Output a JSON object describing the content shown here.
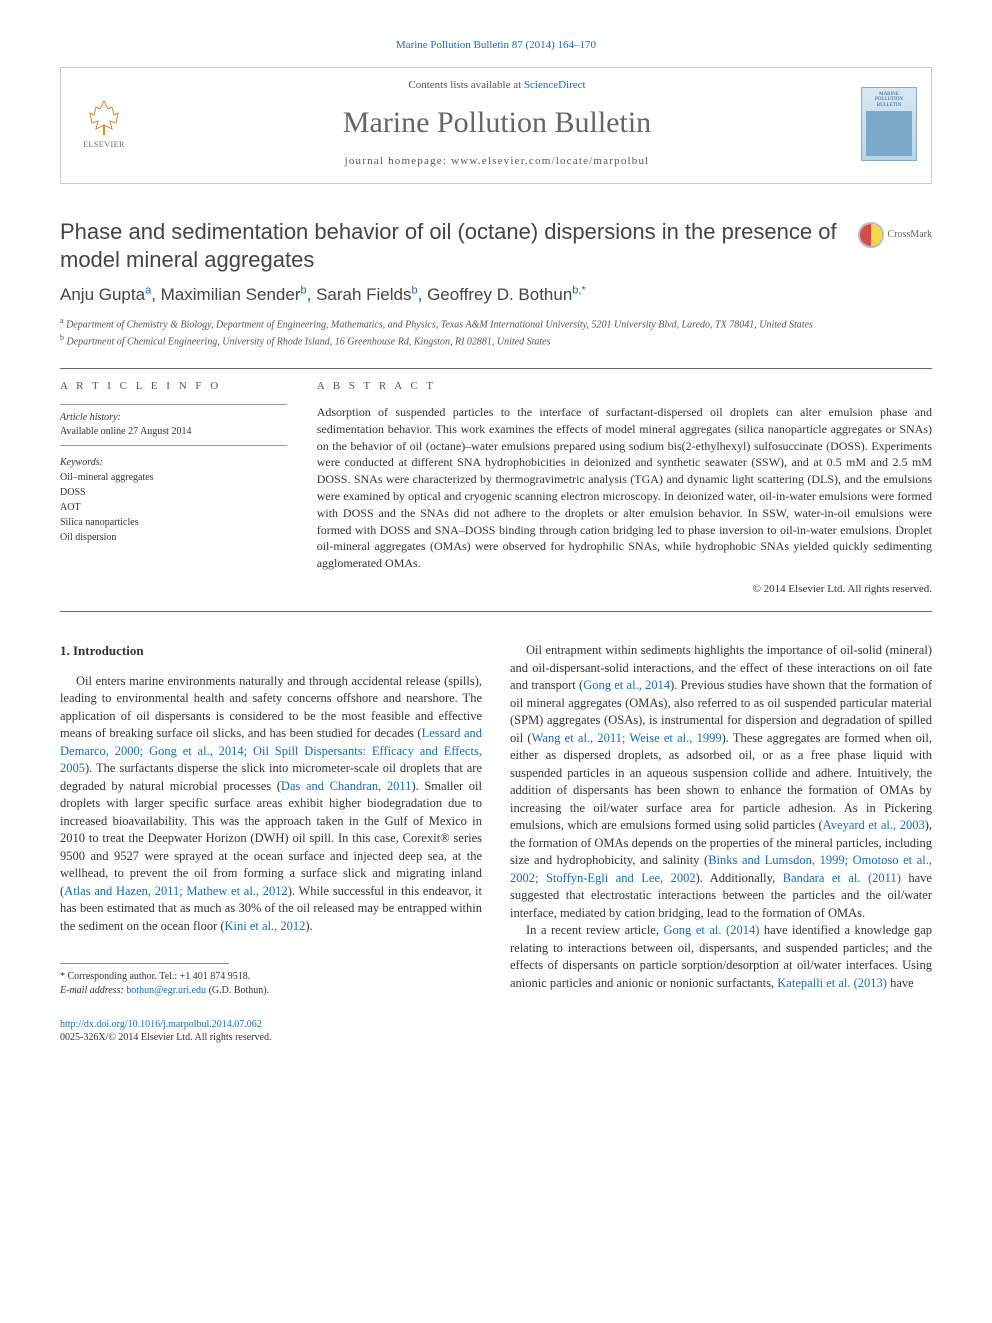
{
  "citation": "Marine Pollution Bulletin 87 (2014) 164–170",
  "header": {
    "contents_prefix": "Contents lists available at ",
    "contents_link": "ScienceDirect",
    "journal_name": "Marine Pollution Bulletin",
    "homepage_prefix": "journal homepage: ",
    "homepage_url": "www.elsevier.com/locate/marpolbul",
    "elsevier_label": "ELSEVIER",
    "cover_title": "MARINE POLLUTION BULLETIN"
  },
  "article": {
    "title": "Phase and sedimentation behavior of oil (octane) dispersions in the presence of model mineral aggregates",
    "crossmark": "CrossMark",
    "authors_html": "Anju Gupta<sup>a</sup>, Maximilian Sender<sup>b</sup>, Sarah Fields<sup>b</sup>, Geoffrey D. Bothun<sup>b,*</sup>",
    "authors": [
      {
        "name": "Anju Gupta",
        "aff": "a"
      },
      {
        "name": "Maximilian Sender",
        "aff": "b"
      },
      {
        "name": "Sarah Fields",
        "aff": "b"
      },
      {
        "name": "Geoffrey D. Bothun",
        "aff": "b,*"
      }
    ],
    "affiliations": [
      {
        "sup": "a",
        "text": "Department of Chemistry & Biology, Department of Engineering, Mathematics, and Physics, Texas A&M International University, 5201 University Blvd, Laredo, TX 78041, United States"
      },
      {
        "sup": "b",
        "text": "Department of Chemical Engineering, University of Rhode Island, 16 Greenhouse Rd, Kingston, RI 02881, United States"
      }
    ]
  },
  "info": {
    "section_label": "A R T I C L E   I N F O",
    "history_label": "Article history:",
    "history_line": "Available online 27 August 2014",
    "keywords_label": "Keywords:",
    "keywords": [
      "Oil–mineral aggregates",
      "DOSS",
      "AOT",
      "Silica nanoparticles",
      "Oil dispersion"
    ]
  },
  "abstract": {
    "section_label": "A B S T R A C T",
    "text": "Adsorption of suspended particles to the interface of surfactant-dispersed oil droplets can alter emulsion phase and sedimentation behavior. This work examines the effects of model mineral aggregates (silica nanoparticle aggregates or SNAs) on the behavior of oil (octane)–water emulsions prepared using sodium bis(2-ethylhexyl) sulfosuccinate (DOSS). Experiments were conducted at different SNA hydrophobicities in deionized and synthetic seawater (SSW), and at 0.5 mM and 2.5 mM DOSS. SNAs were characterized by thermogravimetric analysis (TGA) and dynamic light scattering (DLS), and the emulsions were examined by optical and cryogenic scanning electron microscopy. In deionized water, oil-in-water emulsions were formed with DOSS and the SNAs did not adhere to the droplets or alter emulsion behavior. In SSW, water-in-oil emulsions were formed with DOSS and SNA–DOSS binding through cation bridging led to phase inversion to oil-in-water emulsions. Droplet oil-mineral aggregates (OMAs) were observed for hydrophilic SNAs, while hydrophobic SNAs yielded quickly sedimenting agglomerated OMAs.",
    "copyright": "© 2014 Elsevier Ltd. All rights reserved."
  },
  "body": {
    "heading": "1. Introduction",
    "col1": [
      {
        "type": "p",
        "indent": true,
        "runs": [
          {
            "t": "Oil enters marine environments naturally and through accidental release (spills), leading to environmental health and safety concerns offshore and nearshore. The application of oil dispersants is considered to be the most feasible and effective means of breaking surface oil slicks, and has been studied for decades ("
          },
          {
            "t": "Lessard and Demarco, 2000; Gong et al., 2014; Oil Spill Dispersants: Efficacy and Effects, 2005",
            "ref": true
          },
          {
            "t": "). The surfactants disperse the slick into micrometer-scale oil droplets that are degraded by natural microbial processes ("
          },
          {
            "t": "Das and Chandran, 2011",
            "ref": true
          },
          {
            "t": "). Smaller oil droplets with larger specific surface areas exhibit higher biodegradation due to increased bioavailability. This was the approach taken in the Gulf of Mexico in 2010 to treat the Deepwater Horizon (DWH) oil spill. In this case, Corexit® series 9500 and 9527 were sprayed at the ocean surface and injected deep sea, at the wellhead, to prevent the oil from forming a surface slick and migrating inland ("
          },
          {
            "t": "Atlas and Hazen, 2011; Mathew et al., 2012",
            "ref": true
          },
          {
            "t": "). While successful in this endeavor, it has been estimated that as much as 30% of the oil released may be entrapped within the sediment on the ocean floor ("
          },
          {
            "t": "Kini et al., 2012",
            "ref": true
          },
          {
            "t": ")."
          }
        ]
      }
    ],
    "col2": [
      {
        "type": "p",
        "indent": true,
        "runs": [
          {
            "t": "Oil entrapment within sediments highlights the importance of oil-solid (mineral) and oil-dispersant-solid interactions, and the effect of these interactions on oil fate and transport ("
          },
          {
            "t": "Gong et al., 2014",
            "ref": true
          },
          {
            "t": "). Previous studies have shown that the formation of oil mineral aggregates (OMAs), also referred to as oil suspended particular material (SPM) aggregates (OSAs), is instrumental for dispersion and degradation of spilled oil ("
          },
          {
            "t": "Wang et al., 2011; Weise et al., 1999",
            "ref": true
          },
          {
            "t": "). These aggregates are formed when oil, either as dispersed droplets, as adsorbed oil, or as a free phase liquid with suspended particles in an aqueous suspension collide and adhere. Intuitively, the addition of dispersants has been shown to enhance the formation of OMAs by increasing the oil/water surface area for particle adhesion. As in Pickering emulsions, which are emulsions formed using solid particles ("
          },
          {
            "t": "Aveyard et al., 2003",
            "ref": true
          },
          {
            "t": "), the formation of OMAs depends on the properties of the mineral particles, including size and hydrophobicity, and salinity ("
          },
          {
            "t": "Binks and Lumsdon, 1999; Omotoso et al., 2002; Stoffyn-Egli and Lee, 2002",
            "ref": true
          },
          {
            "t": "). Additionally, "
          },
          {
            "t": "Bandara et al. (2011)",
            "ref": true
          },
          {
            "t": " have suggested that electrostatic interactions between the particles and the oil/water interface, mediated by cation bridging, lead to the formation of OMAs."
          }
        ]
      },
      {
        "type": "p",
        "indent": true,
        "runs": [
          {
            "t": "In a recent review article, "
          },
          {
            "t": "Gong et al. (2014)",
            "ref": true
          },
          {
            "t": " have identified a knowledge gap relating to interactions between oil, dispersants, and suspended particles; and the effects of dispersants on particle sorption/desorption at oil/water interfaces. Using anionic particles and anionic or nonionic surfactants, "
          },
          {
            "t": "Katepalli et al. (2013)",
            "ref": true
          },
          {
            "t": " have"
          }
        ]
      }
    ]
  },
  "footnotes": {
    "corr_label": "* Corresponding author. Tel.: +1 401 874 9518.",
    "email_label": "E-mail address:",
    "email": "bothun@egr.uri.edu",
    "email_suffix": "(G.D. Bothun)."
  },
  "doi": {
    "url": "http://dx.doi.org/10.1016/j.marpolbul.2014.07.062",
    "issn_line": "0025-326X/© 2014 Elsevier Ltd. All rights reserved."
  },
  "colors": {
    "link": "#1a6bb8",
    "text": "#333333",
    "muted": "#555555",
    "border": "#cccccc",
    "rule": "#666666"
  },
  "typography": {
    "body_font": "Georgia, 'Times New Roman', serif",
    "sans_font": "Arial, Helvetica, sans-serif",
    "title_size_pt": 22,
    "journal_name_size_pt": 30,
    "body_size_pt": 12.5,
    "abstract_size_pt": 12,
    "small_size_pt": 10
  }
}
